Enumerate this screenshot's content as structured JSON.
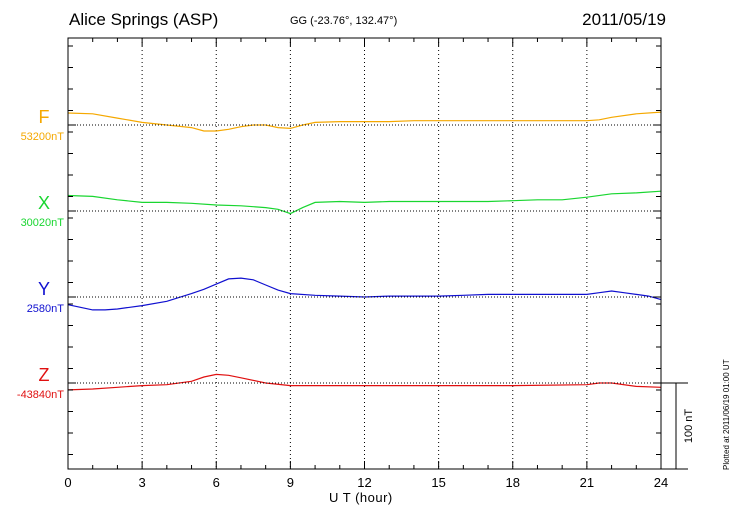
{
  "header": {
    "station": "Alice Springs (ASP)",
    "coords": "GG (-23.76°, 132.47°)",
    "date": "2011/05/19"
  },
  "footer": {
    "plotted": "Plotted at 2011/06/19 01:00 UT"
  },
  "colors": {
    "F": "#f5a800",
    "X": "#19d630",
    "Y": "#1010d0",
    "Z": "#e01010",
    "axis": "#000000"
  },
  "chart_data": {
    "type": "line",
    "xlabel": "U T (hour)",
    "xlim": [
      0,
      24
    ],
    "xticks": [
      0,
      3,
      6,
      9,
      12,
      15,
      18,
      21,
      24
    ],
    "grid": "dotted",
    "scale_bar": {
      "label": "100 nT",
      "value_nT": 100
    },
    "series": [
      {
        "name": "F",
        "baseline_label": "53200nT",
        "baseline_nT": 53200,
        "x": [
          0,
          1,
          2,
          3,
          4,
          5,
          5.5,
          6,
          6.5,
          7,
          7.5,
          8,
          8.5,
          9,
          9.5,
          10,
          11,
          12,
          13,
          14,
          15,
          16,
          17,
          18,
          19,
          20,
          21,
          21.5,
          22,
          23,
          24
        ],
        "y": [
          53214,
          53213,
          53208,
          53203,
          53200,
          53197,
          53193,
          53193,
          53195,
          53198,
          53200,
          53200,
          53197,
          53196,
          53200,
          53203,
          53204,
          53204,
          53204,
          53205,
          53205,
          53205,
          53205,
          53205,
          53205,
          53205,
          53205,
          53206,
          53209,
          53213,
          53215
        ]
      },
      {
        "name": "X",
        "baseline_label": "30020nT",
        "baseline_nT": 30020,
        "x": [
          0,
          1,
          2,
          3,
          4,
          5,
          6,
          7,
          8,
          8.5,
          9,
          9.5,
          10,
          11,
          12,
          13,
          14,
          15,
          16,
          17,
          18,
          19,
          20,
          21,
          22,
          23,
          24
        ],
        "y": [
          30038,
          30037,
          30033,
          30030,
          30030,
          30029,
          30027,
          30026,
          30024,
          30022,
          30017,
          30024,
          30030,
          30031,
          30030,
          30031,
          30031,
          30031,
          30031,
          30031,
          30032,
          30033,
          30033,
          30036,
          30040,
          30041,
          30043
        ]
      },
      {
        "name": "Y",
        "baseline_label": "2580nT",
        "baseline_nT": 2580,
        "x": [
          0,
          0.5,
          1,
          1.5,
          2,
          3,
          4,
          5,
          5.5,
          6,
          6.5,
          7,
          7.5,
          8,
          8.5,
          9,
          10,
          11,
          12,
          13,
          14,
          15,
          16,
          17,
          18,
          19,
          20,
          21,
          21.5,
          22,
          22.5,
          23,
          23.5,
          24
        ],
        "y": [
          2571,
          2568,
          2565,
          2565,
          2566,
          2570,
          2575,
          2584,
          2589,
          2595,
          2601,
          2602,
          2600,
          2594,
          2588,
          2584,
          2582,
          2581,
          2580,
          2581,
          2581,
          2581,
          2582,
          2583,
          2583,
          2583,
          2583,
          2583,
          2585,
          2587,
          2585,
          2583,
          2581,
          2577
        ]
      },
      {
        "name": "Z",
        "baseline_label": "-43840nT",
        "baseline_nT": -43840,
        "x": [
          0,
          1,
          2,
          3,
          4,
          5,
          5.5,
          6,
          6.5,
          7,
          8,
          9,
          10,
          12,
          15,
          18,
          21,
          21.5,
          22,
          23,
          24
        ],
        "y": [
          -43848,
          -43847,
          -43845,
          -43843,
          -43842,
          -43838,
          -43833,
          -43830,
          -43831,
          -43834,
          -43840,
          -43843,
          -43843,
          -43843,
          -43843,
          -43843,
          -43842,
          -43840,
          -43840,
          -43844,
          -43845
        ]
      }
    ]
  }
}
